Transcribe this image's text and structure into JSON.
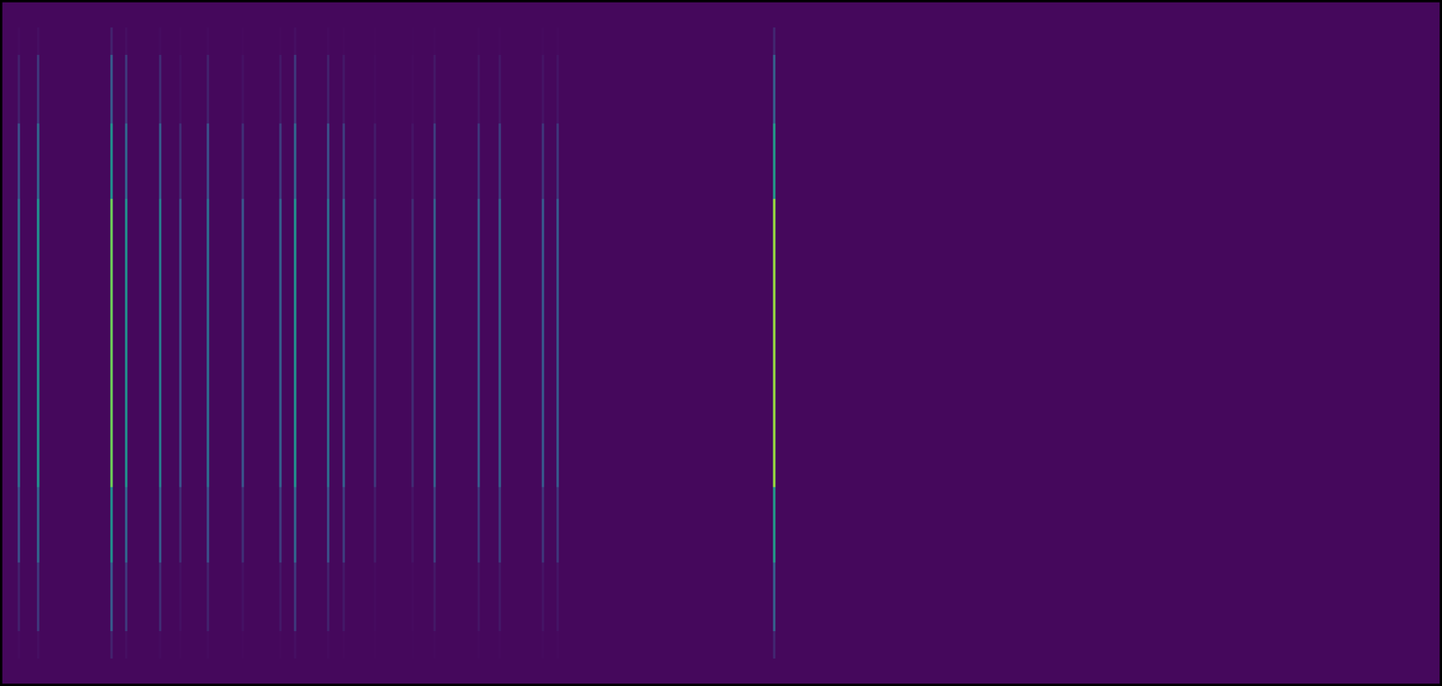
{
  "chart_data": {
    "type": "spectrum",
    "x": [
      18,
      39,
      119,
      135,
      172,
      194,
      224,
      262,
      303,
      319,
      355,
      372,
      406,
      447,
      471,
      519,
      542,
      589,
      605,
      841
    ],
    "values": [
      0.35,
      0.5,
      0.78,
      0.5,
      0.42,
      0.25,
      0.36,
      0.26,
      0.3,
      0.5,
      0.36,
      0.3,
      0.2,
      0.18,
      0.3,
      0.28,
      0.3,
      0.28,
      0.28,
      0.85
    ],
    "xlim": [
      0,
      1566
    ],
    "grid": false,
    "tick_labels": false
  }
}
